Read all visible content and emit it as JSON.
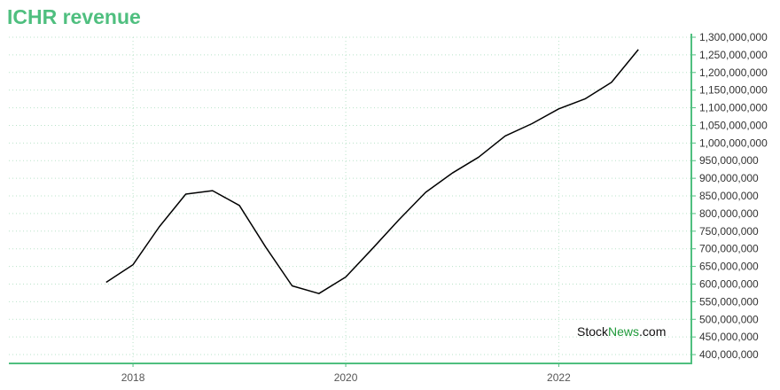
{
  "title": "ICHR revenue",
  "watermark": {
    "part1": "Stock",
    "part2": "News",
    "part3": ".com"
  },
  "colors": {
    "accent": "#4fbf7f",
    "line": "#000000",
    "grid": "#b9e3c9"
  },
  "chart_data": {
    "type": "line",
    "title": "ICHR revenue",
    "xlabel": "",
    "ylabel": "",
    "grid": true,
    "x_range": [
      "2016-11-01",
      "2023-04-01"
    ],
    "ylim": [
      375000000,
      1300000000
    ],
    "y_ticks": [
      1300000000,
      1250000000,
      1200000000,
      1150000000,
      1100000000,
      1050000000,
      1000000000,
      950000000,
      900000000,
      850000000,
      800000000,
      750000000,
      700000000,
      650000000,
      600000000,
      550000000,
      500000000,
      450000000,
      400000000
    ],
    "y_tick_labels": [
      "1,300,000,000",
      "1,250,000,000",
      "1,200,000,000",
      "1,150,000,000",
      "1,100,000,000",
      "1,050,000,000",
      "1,000,000,000",
      "950,000,000",
      "900,000,000",
      "850,000,000",
      "800,000,000",
      "750,000,000",
      "700,000,000",
      "650,000,000",
      "600,000,000",
      "550,000,000",
      "500,000,000",
      "450,000,000",
      "400,000,000"
    ],
    "x_ticks": [
      "2018-01-01",
      "2020-01-01",
      "2022-01-01"
    ],
    "x_tick_labels": [
      "2018",
      "2020",
      "2022"
    ],
    "series": [
      {
        "x": [
          "2017-10-01",
          "2018-01-01",
          "2018-04-01",
          "2018-07-01",
          "2018-10-01",
          "2019-01-01",
          "2019-04-01",
          "2019-07-01",
          "2019-10-01",
          "2020-01-01",
          "2020-04-01",
          "2020-07-01",
          "2020-10-01",
          "2021-01-01",
          "2021-04-01",
          "2021-07-01",
          "2021-10-01",
          "2022-01-01",
          "2022-04-01",
          "2022-07-01",
          "2022-10-01"
        ],
        "values": [
          605000000,
          655000000,
          762000000,
          855000000,
          865000000,
          823000000,
          705000000,
          595000000,
          573000000,
          620000000,
          700000000,
          782000000,
          860000000,
          915000000,
          960000000,
          1020000000,
          1055000000,
          1097000000,
          1125000000,
          1172000000,
          1265000000
        ]
      }
    ]
  }
}
